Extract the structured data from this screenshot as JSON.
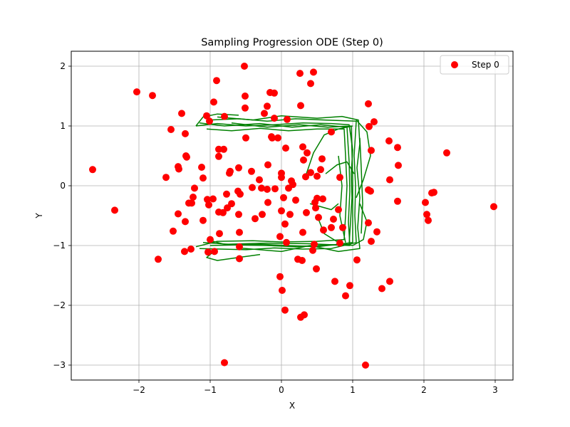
{
  "chart_data": {
    "type": "scatter",
    "title": "Sampling Progression ODE (Step 0)",
    "xlabel": "X",
    "ylabel": "Y",
    "xlim": [
      -2.95,
      3.25
    ],
    "ylim": [
      -3.25,
      2.25
    ],
    "xticks": [
      -2,
      -1,
      0,
      1,
      2,
      3
    ],
    "yticks": [
      -3,
      -2,
      -1,
      0,
      1,
      2
    ],
    "xtick_labels": [
      "−2",
      "−1",
      "0",
      "1",
      "2",
      "3"
    ],
    "ytick_labels": [
      "−3",
      "−2",
      "−1",
      "0",
      "1",
      "2"
    ],
    "grid": true,
    "legend_position": "top-right",
    "point_color": "#ff0000",
    "trajectory_color": "#008000",
    "series": [
      {
        "name": "Step 0",
        "points": [
          [
            -2.65,
            0.27
          ],
          [
            -2.34,
            -0.41
          ],
          [
            -2.03,
            1.57
          ],
          [
            -1.81,
            1.51
          ],
          [
            -1.73,
            -1.23
          ],
          [
            -1.62,
            0.14
          ],
          [
            -1.55,
            0.94
          ],
          [
            -1.52,
            -0.76
          ],
          [
            -1.45,
            -0.47
          ],
          [
            -1.45,
            0.32
          ],
          [
            -1.44,
            0.28
          ],
          [
            -1.4,
            1.21
          ],
          [
            -1.36,
            -1.1
          ],
          [
            -1.35,
            0.87
          ],
          [
            -1.35,
            -0.6
          ],
          [
            -1.34,
            0.5
          ],
          [
            -1.33,
            0.48
          ],
          [
            -1.3,
            -0.29
          ],
          [
            -1.27,
            -1.06
          ],
          [
            -1.26,
            -0.29
          ],
          [
            -1.24,
            -0.19
          ],
          [
            -1.22,
            -0.04
          ],
          [
            -1.12,
            0.31
          ],
          [
            -1.1,
            -0.58
          ],
          [
            -1.1,
            0.13
          ],
          [
            -1.05,
            1.17
          ],
          [
            -1.04,
            -0.23
          ],
          [
            -1.03,
            -1.11
          ],
          [
            -1.02,
            -0.32
          ],
          [
            -1.01,
            1.08
          ],
          [
            -1.0,
            -0.9
          ],
          [
            -0.96,
            -0.22
          ],
          [
            -0.95,
            1.4
          ],
          [
            -0.94,
            -1.1
          ],
          [
            -0.91,
            1.76
          ],
          [
            -0.88,
            0.49
          ],
          [
            -0.88,
            0.61
          ],
          [
            -0.88,
            -0.44
          ],
          [
            -0.87,
            -0.8
          ],
          [
            -0.82,
            -0.45
          ],
          [
            -0.81,
            0.61
          ],
          [
            -0.8,
            1.16
          ],
          [
            -0.8,
            -2.96
          ],
          [
            -0.77,
            -0.14
          ],
          [
            -0.76,
            -0.37
          ],
          [
            -0.73,
            0.21
          ],
          [
            -0.72,
            0.24
          ],
          [
            -0.7,
            -0.3
          ],
          [
            -0.61,
            -0.09
          ],
          [
            -0.6,
            -0.48
          ],
          [
            -0.6,
            0.3
          ],
          [
            -0.59,
            -0.78
          ],
          [
            -0.59,
            -1.02
          ],
          [
            -0.59,
            -1.22
          ],
          [
            -0.58,
            -0.14
          ],
          [
            -0.52,
            2.0
          ],
          [
            -0.51,
            1.5
          ],
          [
            -0.51,
            1.3
          ],
          [
            -0.5,
            0.8
          ],
          [
            -0.42,
            0.24
          ],
          [
            -0.41,
            -0.03
          ],
          [
            -0.37,
            -0.55
          ],
          [
            -0.31,
            0.1
          ],
          [
            -0.28,
            -0.04
          ],
          [
            -0.27,
            -0.48
          ],
          [
            -0.24,
            1.21
          ],
          [
            -0.2,
            -0.06
          ],
          [
            -0.2,
            1.33
          ],
          [
            -0.19,
            0.35
          ],
          [
            -0.19,
            -0.28
          ],
          [
            -0.16,
            1.56
          ],
          [
            -0.14,
            0.82
          ],
          [
            -0.13,
            0.8
          ],
          [
            -0.1,
            1.55
          ],
          [
            -0.1,
            1.13
          ],
          [
            -0.09,
            -0.05
          ],
          [
            -0.05,
            0.8
          ],
          [
            -0.02,
            -0.85
          ],
          [
            -0.02,
            -1.52
          ],
          [
            0.0,
            0.21
          ],
          [
            0.0,
            0.14
          ],
          [
            0.0,
            -0.42
          ],
          [
            0.01,
            -1.75
          ],
          [
            0.03,
            -0.2
          ],
          [
            0.05,
            -0.64
          ],
          [
            0.05,
            -2.08
          ],
          [
            0.06,
            0.63
          ],
          [
            0.07,
            -0.95
          ],
          [
            0.08,
            1.11
          ],
          [
            0.1,
            -0.04
          ],
          [
            0.12,
            -0.48
          ],
          [
            0.14,
            0.08
          ],
          [
            0.16,
            0.02
          ],
          [
            0.2,
            -0.24
          ],
          [
            0.23,
            -1.23
          ],
          [
            0.26,
            1.88
          ],
          [
            0.27,
            -2.2
          ],
          [
            0.27,
            1.34
          ],
          [
            0.29,
            -1.25
          ],
          [
            0.3,
            -0.78
          ],
          [
            0.3,
            0.65
          ],
          [
            0.31,
            0.43
          ],
          [
            0.32,
            -2.16
          ],
          [
            0.34,
            0.15
          ],
          [
            0.35,
            -0.45
          ],
          [
            0.36,
            0.55
          ],
          [
            0.41,
            0.22
          ],
          [
            0.41,
            1.71
          ],
          [
            0.44,
            -1.08
          ],
          [
            0.45,
            1.9
          ],
          [
            0.46,
            -0.98
          ],
          [
            0.47,
            -0.28
          ],
          [
            0.48,
            -0.37
          ],
          [
            0.49,
            -1.39
          ],
          [
            0.5,
            0.16
          ],
          [
            0.5,
            -0.21
          ],
          [
            0.52,
            -0.53
          ],
          [
            0.55,
            0.27
          ],
          [
            0.57,
            0.45
          ],
          [
            0.58,
            -0.22
          ],
          [
            0.59,
            -0.74
          ],
          [
            0.7,
            0.9
          ],
          [
            0.7,
            -0.7
          ],
          [
            0.73,
            -0.56
          ],
          [
            0.75,
            -1.6
          ],
          [
            0.8,
            -0.4
          ],
          [
            0.82,
            0.14
          ],
          [
            0.82,
            -0.96
          ],
          [
            0.86,
            -0.7
          ],
          [
            0.9,
            -1.84
          ],
          [
            0.96,
            -1.67
          ],
          [
            1.06,
            -1.24
          ],
          [
            1.22,
            -0.07
          ],
          [
            1.22,
            1.37
          ],
          [
            1.22,
            -0.62
          ],
          [
            1.23,
            0.99
          ],
          [
            1.25,
            -0.09
          ],
          [
            1.26,
            -0.93
          ],
          [
            1.26,
            0.59
          ],
          [
            1.3,
            1.07
          ],
          [
            1.34,
            -0.77
          ],
          [
            1.41,
            -1.72
          ],
          [
            1.51,
            0.75
          ],
          [
            1.52,
            0.1
          ],
          [
            1.52,
            -1.6
          ],
          [
            1.63,
            0.64
          ],
          [
            1.63,
            -0.26
          ],
          [
            1.64,
            0.34
          ],
          [
            2.02,
            -0.28
          ],
          [
            2.04,
            -0.48
          ],
          [
            2.06,
            -0.58
          ],
          [
            2.11,
            -0.12
          ],
          [
            2.14,
            -0.11
          ],
          [
            2.32,
            0.55
          ],
          [
            2.98,
            -0.35
          ],
          [
            1.18,
            -3.0
          ]
        ]
      }
    ],
    "trajectories": [
      [
        [
          -1.2,
          1.0
        ],
        [
          -0.9,
          1.04
        ],
        [
          -0.5,
          1.0
        ],
        [
          -0.1,
          1.02
        ],
        [
          0.3,
          1.05
        ],
        [
          0.7,
          1.04
        ],
        [
          0.95,
          1.02
        ],
        [
          1.0,
          0.6
        ],
        [
          0.98,
          0.2
        ],
        [
          0.99,
          -0.2
        ],
        [
          0.97,
          -0.6
        ],
        [
          0.95,
          -0.98
        ],
        [
          0.6,
          -0.99
        ],
        [
          0.2,
          -1.02
        ],
        [
          -0.2,
          -1.0
        ],
        [
          -0.6,
          -0.99
        ],
        [
          -1.1,
          -0.95
        ]
      ],
      [
        [
          -1.0,
          1.1
        ],
        [
          -0.6,
          1.12
        ],
        [
          -0.2,
          1.08
        ],
        [
          0.2,
          1.12
        ],
        [
          0.6,
          1.1
        ],
        [
          1.05,
          1.08
        ],
        [
          1.02,
          0.5
        ],
        [
          1.04,
          0.0
        ],
        [
          1.03,
          -0.5
        ],
        [
          1.05,
          -0.95
        ],
        [
          0.7,
          -1.05
        ],
        [
          0.3,
          -1.06
        ],
        [
          -0.1,
          -1.04
        ],
        [
          -0.5,
          -1.07
        ],
        [
          -1.15,
          -1.05
        ]
      ],
      [
        [
          -1.05,
          0.95
        ],
        [
          -0.7,
          0.92
        ],
        [
          -0.3,
          0.96
        ],
        [
          0.1,
          0.92
        ],
        [
          0.5,
          0.95
        ],
        [
          0.88,
          0.95
        ],
        [
          0.9,
          0.5
        ],
        [
          0.92,
          0.0
        ],
        [
          0.9,
          -0.5
        ],
        [
          0.88,
          -0.9
        ],
        [
          0.5,
          -0.93
        ],
        [
          0.0,
          -0.94
        ],
        [
          -0.4,
          -0.92
        ],
        [
          -0.9,
          -0.93
        ],
        [
          -1.2,
          -1.02
        ]
      ],
      [
        [
          -0.9,
          1.15
        ],
        [
          -0.4,
          1.1
        ],
        [
          0.0,
          1.17
        ],
        [
          0.5,
          1.13
        ],
        [
          0.85,
          1.16
        ],
        [
          1.08,
          1.1
        ],
        [
          1.1,
          0.7
        ],
        [
          1.06,
          0.3
        ],
        [
          1.1,
          -0.2
        ],
        [
          1.07,
          -0.7
        ],
        [
          1.1,
          -1.05
        ],
        [
          0.8,
          -1.1
        ],
        [
          0.4,
          -1.0
        ],
        [
          0.0,
          -1.1
        ],
        [
          -0.6,
          -1.04
        ]
      ],
      [
        [
          -1.15,
          1.05
        ],
        [
          -0.8,
          1.0
        ],
        [
          -0.3,
          1.04
        ],
        [
          0.15,
          0.98
        ],
        [
          0.55,
          1.02
        ],
        [
          0.92,
          0.98
        ],
        [
          0.95,
          0.4
        ],
        [
          0.96,
          -0.1
        ],
        [
          0.94,
          -0.6
        ],
        [
          0.96,
          -1.0
        ],
        [
          0.4,
          -0.97
        ],
        [
          -0.2,
          -0.96
        ],
        [
          -0.8,
          -0.98
        ],
        [
          -1.05,
          -0.9
        ]
      ],
      [
        [
          -0.7,
          1.05
        ],
        [
          -0.2,
          0.98
        ],
        [
          0.25,
          1.02
        ],
        [
          0.65,
          0.98
        ],
        [
          0.98,
          1.0
        ],
        [
          1.0,
          0.1
        ],
        [
          1.0,
          -0.95
        ],
        [
          0.5,
          -1.02
        ],
        [
          -0.3,
          -0.98
        ],
        [
          -1.0,
          -1.0
        ]
      ],
      [
        [
          0.35,
          0.2
        ],
        [
          0.45,
          0.55
        ],
        [
          0.6,
          0.85
        ],
        [
          0.8,
          0.95
        ],
        [
          1.0,
          1.0
        ]
      ],
      [
        [
          0.5,
          -0.5
        ],
        [
          0.6,
          -0.8
        ],
        [
          0.8,
          -0.95
        ],
        [
          1.0,
          -1.0
        ]
      ],
      [
        [
          0.62,
          0.2
        ],
        [
          0.78,
          0.35
        ],
        [
          0.92,
          0.4
        ],
        [
          1.02,
          0.2
        ]
      ],
      [
        [
          1.05,
          1.1
        ],
        [
          1.2,
          0.9
        ],
        [
          1.25,
          0.5
        ],
        [
          1.15,
          0.1
        ],
        [
          1.05,
          -0.2
        ]
      ],
      [
        [
          1.0,
          -1.0
        ],
        [
          1.15,
          -0.9
        ],
        [
          1.2,
          -0.6
        ],
        [
          1.1,
          -0.3
        ]
      ],
      [
        [
          -0.95,
          -1.1
        ],
        [
          -1.05,
          -1.2
        ],
        [
          -0.9,
          -1.25
        ],
        [
          -0.6,
          -1.2
        ],
        [
          -0.3,
          -1.15
        ]
      ],
      [
        [
          -1.2,
          1.0
        ],
        [
          -1.1,
          1.15
        ],
        [
          -0.9,
          1.2
        ],
        [
          -0.6,
          1.18
        ]
      ],
      [
        [
          0.8,
          0.5
        ],
        [
          0.85,
          0.0
        ],
        [
          0.82,
          -0.5
        ],
        [
          0.9,
          -0.95
        ]
      ],
      [
        [
          1.1,
          0.8
        ],
        [
          1.12,
          0.3
        ],
        [
          1.14,
          -0.3
        ],
        [
          1.12,
          -0.8
        ]
      ],
      [
        [
          0.4,
          -0.3
        ],
        [
          0.55,
          -0.35
        ],
        [
          0.7,
          -0.4
        ],
        [
          0.8,
          -0.3
        ]
      ]
    ]
  }
}
